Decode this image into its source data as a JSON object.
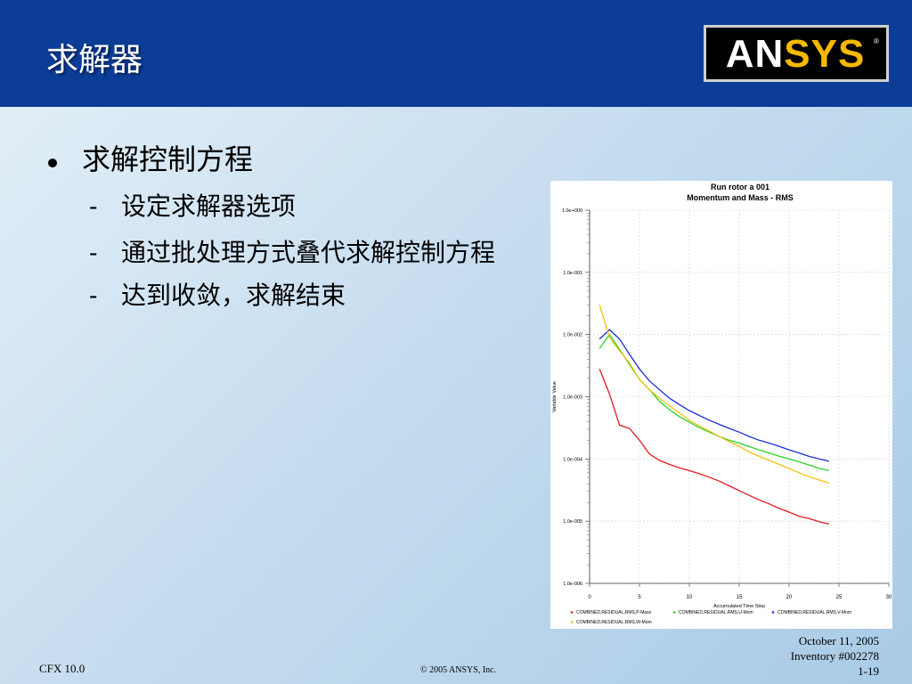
{
  "header": {
    "title": "求解器",
    "logo_text": "ANSYS"
  },
  "content": {
    "bullet": "求解控制方程",
    "items": [
      {
        "dash": "-",
        "text": "设定求解器选项"
      },
      {
        "dash": "-",
        "text": "通过批处理方式叠代求解控制方程"
      },
      {
        "dash": "-",
        "text": "达到收敛，求解结束"
      }
    ]
  },
  "chart_data": {
    "type": "line",
    "title": "Run rotor a 001",
    "subtitle": "Momentum and Mass - RMS",
    "xlabel": "Accumulated Time Step",
    "ylabel": "Variable Value",
    "xlim": [
      0,
      30
    ],
    "ylim": [
      1e-06,
      1
    ],
    "yscale": "log",
    "grid": true,
    "legend_position": "bottom",
    "x_ticks": [
      "0",
      "5",
      "10",
      "15",
      "20",
      "25",
      "30"
    ],
    "y_ticks": [
      "1.0e+000",
      "1.0e-001",
      "1.0e-002",
      "1.0e-003",
      "1.0e-004",
      "1.0e-005",
      "1.0e-006"
    ],
    "series": [
      {
        "name": "COMBINED,RESIDUAL,RMS,P-Mass",
        "color": "#e31a1c",
        "x": [
          1,
          2,
          3,
          4,
          5,
          6,
          7,
          8,
          9,
          10,
          11,
          12,
          13,
          14,
          15,
          16,
          17,
          18,
          19,
          20,
          21,
          22,
          23,
          24
        ],
        "y": [
          0.0028,
          0.0011,
          0.00035,
          0.00031,
          0.0002,
          0.00012,
          9.5e-05,
          8.2e-05,
          7.2e-05,
          6.5e-05,
          5.8e-05,
          5.1e-05,
          4.4e-05,
          3.7e-05,
          3.1e-05,
          2.6e-05,
          2.2e-05,
          1.9e-05,
          1.6e-05,
          1.4e-05,
          1.2e-05,
          1.1e-05,
          9.8e-06,
          9e-06
        ]
      },
      {
        "name": "COMBINED,RESIDUAL,RMS,U-Mom",
        "color": "#2bd12b",
        "x": [
          1,
          2,
          3,
          4,
          5,
          6,
          7,
          8,
          9,
          10,
          11,
          12,
          13,
          14,
          15,
          16,
          17,
          18,
          19,
          20,
          21,
          22,
          23,
          24
        ],
        "y": [
          0.006,
          0.01,
          0.0058,
          0.0033,
          0.0019,
          0.0013,
          0.00085,
          0.00062,
          0.00048,
          0.00039,
          0.00032,
          0.00027,
          0.00023,
          0.0002,
          0.00018,
          0.000158,
          0.00014,
          0.000125,
          0.000111,
          0.0001,
          9e-05,
          8e-05,
          7.1e-05,
          6.5e-05
        ]
      },
      {
        "name": "COMBINED,RESIDUAL,RMS,V-Mom",
        "color": "#1f2fd6",
        "x": [
          1,
          2,
          3,
          4,
          5,
          6,
          7,
          8,
          9,
          10,
          11,
          12,
          13,
          14,
          15,
          16,
          17,
          18,
          19,
          20,
          21,
          22,
          23,
          24
        ],
        "y": [
          0.0085,
          0.012,
          0.0085,
          0.0048,
          0.0028,
          0.0018,
          0.0013,
          0.00095,
          0.00075,
          0.0006,
          0.0005,
          0.00042,
          0.00036,
          0.00031,
          0.00027,
          0.00023,
          0.0002,
          0.00018,
          0.00016,
          0.00014,
          0.000125,
          0.00011,
          0.0001,
          9.2e-05
        ]
      },
      {
        "name": "COMBINED,RESIDUAL,RMS,W-Mom",
        "color": "#f2c20a",
        "x": [
          1,
          2,
          3,
          4,
          5,
          6,
          7,
          8,
          9,
          10,
          11,
          12,
          13,
          14,
          15,
          16,
          17,
          18,
          19,
          20,
          21,
          22,
          23,
          24
        ],
        "y": [
          0.03,
          0.009,
          0.0055,
          0.0035,
          0.0019,
          0.0013,
          0.00095,
          0.00072,
          0.00055,
          0.00042,
          0.00034,
          0.00028,
          0.00023,
          0.00019,
          0.00016,
          0.00013,
          0.00011,
          9.5e-05,
          8.2e-05,
          7e-05,
          6e-05,
          5.2e-05,
          4.6e-05,
          4.1e-05
        ]
      }
    ]
  },
  "footer": {
    "product": "CFX 10.0",
    "copyright": "© 2005 ANSYS, Inc.",
    "date": "October 11, 2005",
    "inventory": "Inventory #002278",
    "page": "1-19"
  }
}
